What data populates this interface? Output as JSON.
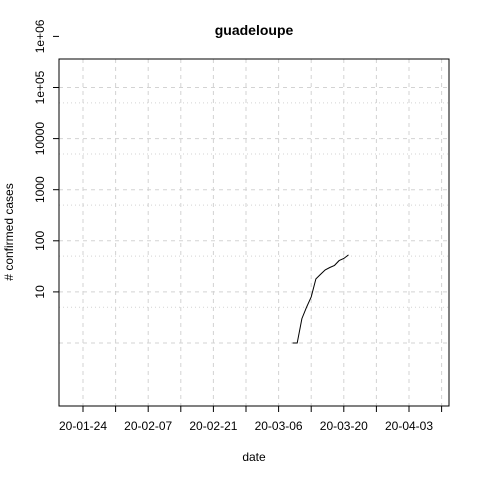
{
  "chart_data": {
    "type": "line",
    "title": "guadeloupe",
    "xlabel": "date",
    "ylabel": "# confirmed cases",
    "y_scale": "log",
    "grid": true,
    "x_tick_labels": [
      "20-01-24",
      "20-02-07",
      "20-02-21",
      "20-03-06",
      "20-03-20",
      "20-04-03"
    ],
    "y_tick_labels": [
      "10",
      "100",
      "1000",
      "10000",
      "1e+05",
      "1e+06"
    ],
    "series": [
      {
        "color": "#000000",
        "x": [
          "2020-03-09",
          "2020-03-10",
          "2020-03-11",
          "2020-03-12",
          "2020-03-13",
          "2020-03-14",
          "2020-03-15",
          "2020-03-16",
          "2020-03-17",
          "2020-03-18",
          "2020-03-19",
          "2020-03-20",
          "2020-03-21"
        ],
        "values": [
          1,
          1,
          3,
          5,
          8,
          18,
          22,
          27,
          30,
          33,
          41,
          45,
          53
        ]
      }
    ]
  }
}
